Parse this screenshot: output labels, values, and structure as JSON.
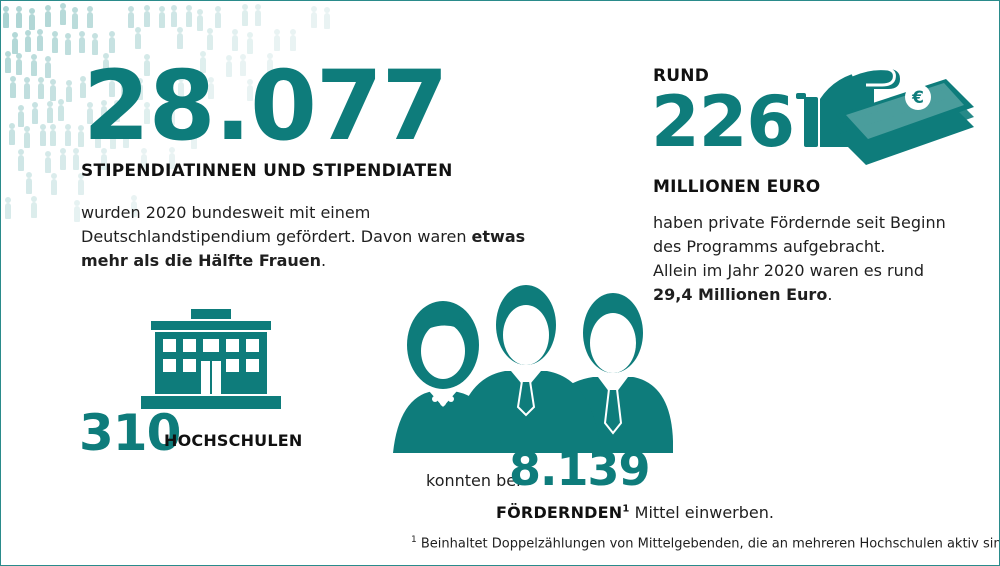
{
  "students": {
    "number": "28.077",
    "heading": "STIPENDIATINNEN UND STIPENDIATEN",
    "text_plain": "wurden 2020 bundesweit mit einem Deutschlandstipendium gefördert. Davon waren ",
    "text_bold": "etwas mehr als die Hälfte Frauen",
    "text_end": "."
  },
  "funding": {
    "prefix": "RUND",
    "number": "226",
    "unit": "MILLIONEN EURO",
    "line1": "haben private Fördernde seit Beginn",
    "line2": "des Programms aufgebracht.",
    "line3": "Allein im Jahr 2020 waren es rund",
    "line4_bold": "29,4 Millionen Euro",
    "line4_end": "."
  },
  "universities": {
    "number": "310",
    "label": "HOCHSCHULEN"
  },
  "sponsors": {
    "prefix": "konnten bei",
    "number": "8.139",
    "label": "FÖRDERNDEN",
    "sup": "1",
    "suffix": " Mittel einwerben."
  },
  "footnote": {
    "sup": "1",
    "text": " Beinhaltet Doppelzählungen von Mittelgebenden, die an mehreren Hochschulen aktiv sind."
  },
  "icons": {
    "crowd": "crowd-icon",
    "money": "money-hand-icon",
    "university": "university-building-icon",
    "people": "people-group-icon"
  },
  "colors": {
    "accent": "#0e7c7b",
    "crowd": "#a9d3d2"
  }
}
